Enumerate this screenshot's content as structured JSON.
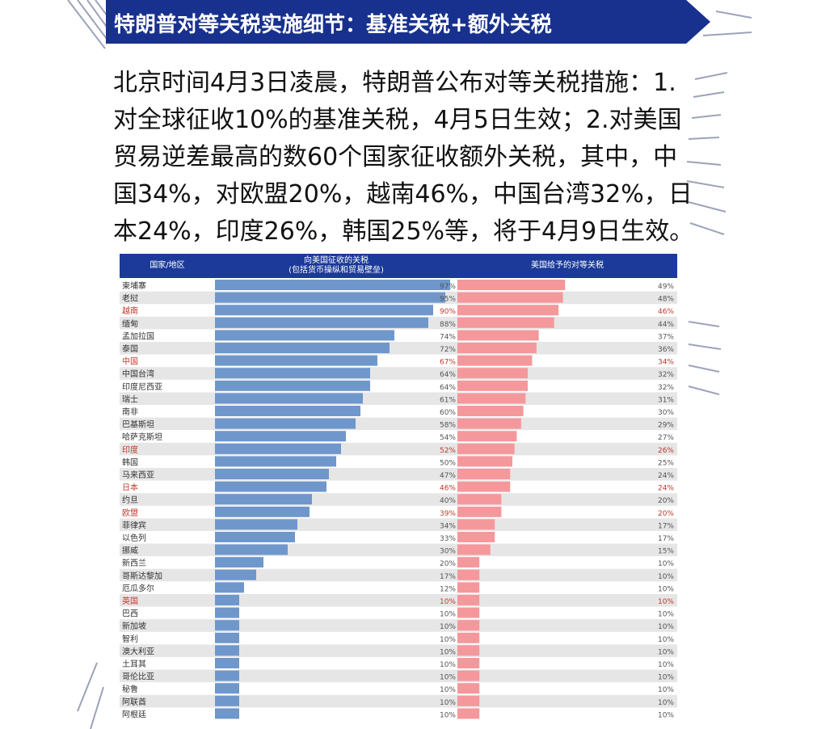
{
  "header": {
    "title": "特朗普对等关税实施细节：基准关税+额外关税",
    "intro": "北京时间4月3日凌晨，特朗普公布对等关税措施：1.对全球征收10%的基准关税，4月5日生效；2.对美国贸易逆差最高的数60个国家征收额外关税，其中，中国34%，对欧盟20%，越南46%，中国台湾32%，日本24%，印度26%，韩国25%等，将于4月9日生效。"
  },
  "chart_data": {
    "type": "table",
    "columns": [
      "国家/地区",
      "向美国征收的关税\n(包括货币操纵和贸易壁垒)",
      "美国给予的对等关税"
    ],
    "colors": {
      "header_bg": "#1b3a9a",
      "left_bar": "#6f97cc",
      "right_bar": "#f4989c",
      "highlight_text": "#c0392b",
      "row_stripe": "#e6e6e6"
    },
    "value_max": 100,
    "rows": [
      {
        "name": "柬埔寨",
        "tariff": 97,
        "reciprocal": 49,
        "highlight": false
      },
      {
        "name": "老挝",
        "tariff": 95,
        "reciprocal": 48,
        "highlight": false
      },
      {
        "name": "越南",
        "tariff": 90,
        "reciprocal": 46,
        "highlight": true
      },
      {
        "name": "缅甸",
        "tariff": 88,
        "reciprocal": 44,
        "highlight": false
      },
      {
        "name": "孟加拉国",
        "tariff": 74,
        "reciprocal": 37,
        "highlight": false
      },
      {
        "name": "泰国",
        "tariff": 72,
        "reciprocal": 36,
        "highlight": false
      },
      {
        "name": "中国",
        "tariff": 67,
        "reciprocal": 34,
        "highlight": true
      },
      {
        "name": "中国台湾",
        "tariff": 64,
        "reciprocal": 32,
        "highlight": false
      },
      {
        "name": "印度尼西亚",
        "tariff": 64,
        "reciprocal": 32,
        "highlight": false
      },
      {
        "name": "瑞士",
        "tariff": 61,
        "reciprocal": 31,
        "highlight": false
      },
      {
        "name": "南非",
        "tariff": 60,
        "reciprocal": 30,
        "highlight": false
      },
      {
        "name": "巴基斯坦",
        "tariff": 58,
        "reciprocal": 29,
        "highlight": false
      },
      {
        "name": "哈萨克斯坦",
        "tariff": 54,
        "reciprocal": 27,
        "highlight": false
      },
      {
        "name": "印度",
        "tariff": 52,
        "reciprocal": 26,
        "highlight": true
      },
      {
        "name": "韩国",
        "tariff": 50,
        "reciprocal": 25,
        "highlight": false
      },
      {
        "name": "马来西亚",
        "tariff": 47,
        "reciprocal": 24,
        "highlight": false
      },
      {
        "name": "日本",
        "tariff": 46,
        "reciprocal": 24,
        "highlight": true
      },
      {
        "name": "约旦",
        "tariff": 40,
        "reciprocal": 20,
        "highlight": false
      },
      {
        "name": "欧盟",
        "tariff": 39,
        "reciprocal": 20,
        "highlight": true
      },
      {
        "name": "菲律宾",
        "tariff": 34,
        "reciprocal": 17,
        "highlight": false
      },
      {
        "name": "以色列",
        "tariff": 33,
        "reciprocal": 17,
        "highlight": false
      },
      {
        "name": "挪威",
        "tariff": 30,
        "reciprocal": 15,
        "highlight": false
      },
      {
        "name": "新西兰",
        "tariff": 20,
        "reciprocal": 10,
        "highlight": false
      },
      {
        "name": "哥斯达黎加",
        "tariff": 17,
        "reciprocal": 10,
        "highlight": false
      },
      {
        "name": "厄瓜多尔",
        "tariff": 12,
        "reciprocal": 10,
        "highlight": false
      },
      {
        "name": "英国",
        "tariff": 10,
        "reciprocal": 10,
        "highlight": true
      },
      {
        "name": "巴西",
        "tariff": 10,
        "reciprocal": 10,
        "highlight": false
      },
      {
        "name": "新加坡",
        "tariff": 10,
        "reciprocal": 10,
        "highlight": false
      },
      {
        "name": "智利",
        "tariff": 10,
        "reciprocal": 10,
        "highlight": false
      },
      {
        "name": "澳大利亚",
        "tariff": 10,
        "reciprocal": 10,
        "highlight": false
      },
      {
        "name": "土耳其",
        "tariff": 10,
        "reciprocal": 10,
        "highlight": false
      },
      {
        "name": "哥伦比亚",
        "tariff": 10,
        "reciprocal": 10,
        "highlight": false
      },
      {
        "name": "秘鲁",
        "tariff": 10,
        "reciprocal": 10,
        "highlight": false
      },
      {
        "name": "阿联酋",
        "tariff": 10,
        "reciprocal": 10,
        "highlight": false
      },
      {
        "name": "阿根廷",
        "tariff": 10,
        "reciprocal": 10,
        "highlight": false
      }
    ]
  }
}
